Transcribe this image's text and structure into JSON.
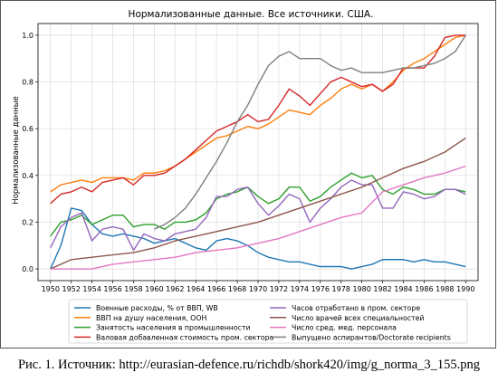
{
  "caption": "Рис. 1. Источник: http://eurasian-defence.ru/richdb/shork420/img/g_norma_3_155.png",
  "chart_data": {
    "type": "line",
    "title": "Нормализованные данные. Все источники. США.",
    "xlabel": "",
    "ylabel": "Нормализованные данные",
    "xlim": [
      1948.8,
      1991.2
    ],
    "ylim": [
      -0.05,
      1.05
    ],
    "x_ticks": [
      1950,
      1952,
      1954,
      1956,
      1958,
      1960,
      1962,
      1964,
      1966,
      1968,
      1970,
      1972,
      1974,
      1976,
      1978,
      1980,
      1982,
      1984,
      1986,
      1988,
      1990
    ],
    "y_ticks": [
      0.0,
      0.2,
      0.4,
      0.6,
      0.8,
      1.0
    ],
    "grid": true,
    "legend_position": "bottom",
    "series": [
      {
        "name": "Военные расходы, % от ВВП, WB",
        "color": "#1f77b4",
        "x": [
          1950,
          1951,
          1952,
          1953,
          1954,
          1955,
          1956,
          1957,
          1958,
          1959,
          1960,
          1961,
          1962,
          1963,
          1964,
          1965,
          1966,
          1967,
          1968,
          1969,
          1970,
          1971,
          1972,
          1973,
          1974,
          1975,
          1976,
          1977,
          1978,
          1979,
          1980,
          1981,
          1982,
          1983,
          1984,
          1985,
          1986,
          1987,
          1988,
          1989,
          1990
        ],
        "y": [
          0.0,
          0.1,
          0.26,
          0.25,
          0.19,
          0.15,
          0.14,
          0.15,
          0.14,
          0.13,
          0.11,
          0.12,
          0.13,
          0.11,
          0.09,
          0.08,
          0.12,
          0.13,
          0.12,
          0.1,
          0.07,
          0.05,
          0.04,
          0.03,
          0.03,
          0.02,
          0.01,
          0.01,
          0.01,
          0.0,
          0.01,
          0.02,
          0.04,
          0.04,
          0.04,
          0.03,
          0.04,
          0.03,
          0.03,
          0.02,
          0.01
        ]
      },
      {
        "name": "ВВП на душу населения, ООН",
        "color": "#ff7f0e",
        "x": [
          1950,
          1951,
          1952,
          1953,
          1954,
          1955,
          1956,
          1957,
          1958,
          1959,
          1960,
          1961,
          1962,
          1963,
          1964,
          1965,
          1966,
          1967,
          1968,
          1969,
          1970,
          1971,
          1972,
          1973,
          1974,
          1975,
          1976,
          1977,
          1978,
          1979,
          1980,
          1981,
          1982,
          1983,
          1984,
          1985,
          1986,
          1987,
          1988,
          1989,
          1990
        ],
        "y": [
          0.33,
          0.36,
          0.37,
          0.38,
          0.37,
          0.39,
          0.39,
          0.39,
          0.38,
          0.41,
          0.41,
          0.42,
          0.44,
          0.47,
          0.5,
          0.53,
          0.56,
          0.57,
          0.59,
          0.61,
          0.6,
          0.62,
          0.65,
          0.68,
          0.67,
          0.66,
          0.7,
          0.73,
          0.77,
          0.79,
          0.77,
          0.79,
          0.76,
          0.8,
          0.85,
          0.88,
          0.9,
          0.93,
          0.96,
          0.99,
          1.0
        ]
      },
      {
        "name": "Занятость населения в промышленности",
        "color": "#2ca02c",
        "x": [
          1950,
          1951,
          1952,
          1953,
          1954,
          1955,
          1956,
          1957,
          1958,
          1959,
          1960,
          1961,
          1962,
          1963,
          1964,
          1965,
          1966,
          1967,
          1968,
          1969,
          1970,
          1971,
          1972,
          1973,
          1974,
          1975,
          1976,
          1977,
          1978,
          1979,
          1980,
          1981,
          1982,
          1983,
          1984,
          1985,
          1986,
          1987,
          1988,
          1989,
          1990
        ],
        "y": [
          0.14,
          0.2,
          0.21,
          0.23,
          0.19,
          0.21,
          0.23,
          0.23,
          0.18,
          0.19,
          0.19,
          0.17,
          0.2,
          0.2,
          0.21,
          0.24,
          0.3,
          0.32,
          0.33,
          0.35,
          0.31,
          0.28,
          0.3,
          0.35,
          0.35,
          0.29,
          0.31,
          0.35,
          0.38,
          0.41,
          0.39,
          0.4,
          0.34,
          0.32,
          0.35,
          0.34,
          0.32,
          0.32,
          0.34,
          0.34,
          0.33
        ]
      },
      {
        "name": "Валовая добавленная стоимость пром. сектора",
        "color": "#d62728",
        "x": [
          1950,
          1951,
          1952,
          1953,
          1954,
          1955,
          1956,
          1957,
          1958,
          1959,
          1960,
          1961,
          1962,
          1963,
          1964,
          1965,
          1966,
          1967,
          1968,
          1969,
          1970,
          1971,
          1972,
          1973,
          1974,
          1975,
          1976,
          1977,
          1978,
          1979,
          1980,
          1981,
          1982,
          1983,
          1984,
          1985,
          1986,
          1987,
          1988,
          1989,
          1990
        ],
        "y": [
          0.28,
          0.32,
          0.33,
          0.35,
          0.33,
          0.37,
          0.38,
          0.39,
          0.36,
          0.4,
          0.4,
          0.41,
          0.44,
          0.47,
          0.51,
          0.55,
          0.59,
          0.61,
          0.63,
          0.66,
          0.63,
          0.64,
          0.7,
          0.77,
          0.74,
          0.7,
          0.75,
          0.8,
          0.82,
          0.8,
          0.78,
          0.79,
          0.76,
          0.79,
          0.86,
          0.86,
          0.86,
          0.91,
          0.99,
          1.0,
          1.0
        ]
      },
      {
        "name": "Часов отработано в пром. секторе",
        "color": "#9467bd",
        "x": [
          1950,
          1951,
          1952,
          1953,
          1954,
          1955,
          1956,
          1957,
          1958,
          1959,
          1960,
          1961,
          1962,
          1963,
          1964,
          1965,
          1966,
          1967,
          1968,
          1969,
          1970,
          1971,
          1972,
          1973,
          1974,
          1975,
          1976,
          1977,
          1978,
          1979,
          1980,
          1981,
          1982,
          1983,
          1984,
          1985,
          1986,
          1987,
          1988,
          1989,
          1990
        ],
        "y": [
          0.09,
          0.18,
          0.22,
          0.24,
          0.12,
          0.17,
          0.18,
          0.17,
          0.08,
          0.15,
          0.13,
          0.12,
          0.15,
          0.16,
          0.17,
          0.22,
          0.31,
          0.31,
          0.34,
          0.35,
          0.28,
          0.23,
          0.27,
          0.32,
          0.3,
          0.2,
          0.26,
          0.3,
          0.35,
          0.38,
          0.36,
          0.36,
          0.26,
          0.26,
          0.33,
          0.32,
          0.3,
          0.31,
          0.34,
          0.34,
          0.32
        ]
      },
      {
        "name": "Число врачей всех специальностей",
        "color": "#8c564b",
        "x": [
          1950,
          1952,
          1954,
          1956,
          1958,
          1960,
          1962,
          1964,
          1966,
          1968,
          1970,
          1972,
          1974,
          1976,
          1978,
          1980,
          1982,
          1984,
          1986,
          1988,
          1990
        ],
        "y": [
          0.0,
          0.04,
          0.05,
          0.06,
          0.07,
          0.09,
          0.12,
          0.14,
          0.16,
          0.18,
          0.2,
          0.23,
          0.26,
          0.29,
          0.32,
          0.35,
          0.39,
          0.43,
          0.46,
          0.5,
          0.56
        ]
      },
      {
        "name": "Число сред. мед. персонала",
        "color": "#e377c2",
        "x": [
          1950,
          1952,
          1954,
          1956,
          1958,
          1960,
          1962,
          1964,
          1966,
          1968,
          1970,
          1972,
          1974,
          1976,
          1978,
          1980,
          1982,
          1984,
          1986,
          1988,
          1990
        ],
        "y": [
          0.0,
          0.0,
          0.0,
          0.02,
          0.03,
          0.04,
          0.05,
          0.07,
          0.08,
          0.09,
          0.11,
          0.13,
          0.16,
          0.19,
          0.22,
          0.24,
          0.33,
          0.36,
          0.39,
          0.41,
          0.44
        ]
      },
      {
        "name": "Выпущено аспирантов/Doctorate recipients",
        "color": "#7f7f7f",
        "x": [
          1960,
          1961,
          1962,
          1963,
          1964,
          1965,
          1966,
          1967,
          1968,
          1969,
          1970,
          1971,
          1972,
          1973,
          1974,
          1975,
          1976,
          1977,
          1978,
          1979,
          1980,
          1981,
          1982,
          1983,
          1984,
          1985,
          1986,
          1987,
          1988,
          1989,
          1990
        ],
        "y": [
          0.17,
          0.19,
          0.22,
          0.26,
          0.32,
          0.39,
          0.46,
          0.54,
          0.63,
          0.7,
          0.79,
          0.87,
          0.91,
          0.93,
          0.9,
          0.9,
          0.9,
          0.87,
          0.85,
          0.86,
          0.84,
          0.84,
          0.84,
          0.85,
          0.86,
          0.86,
          0.87,
          0.88,
          0.9,
          0.93,
          1.0
        ]
      }
    ]
  }
}
